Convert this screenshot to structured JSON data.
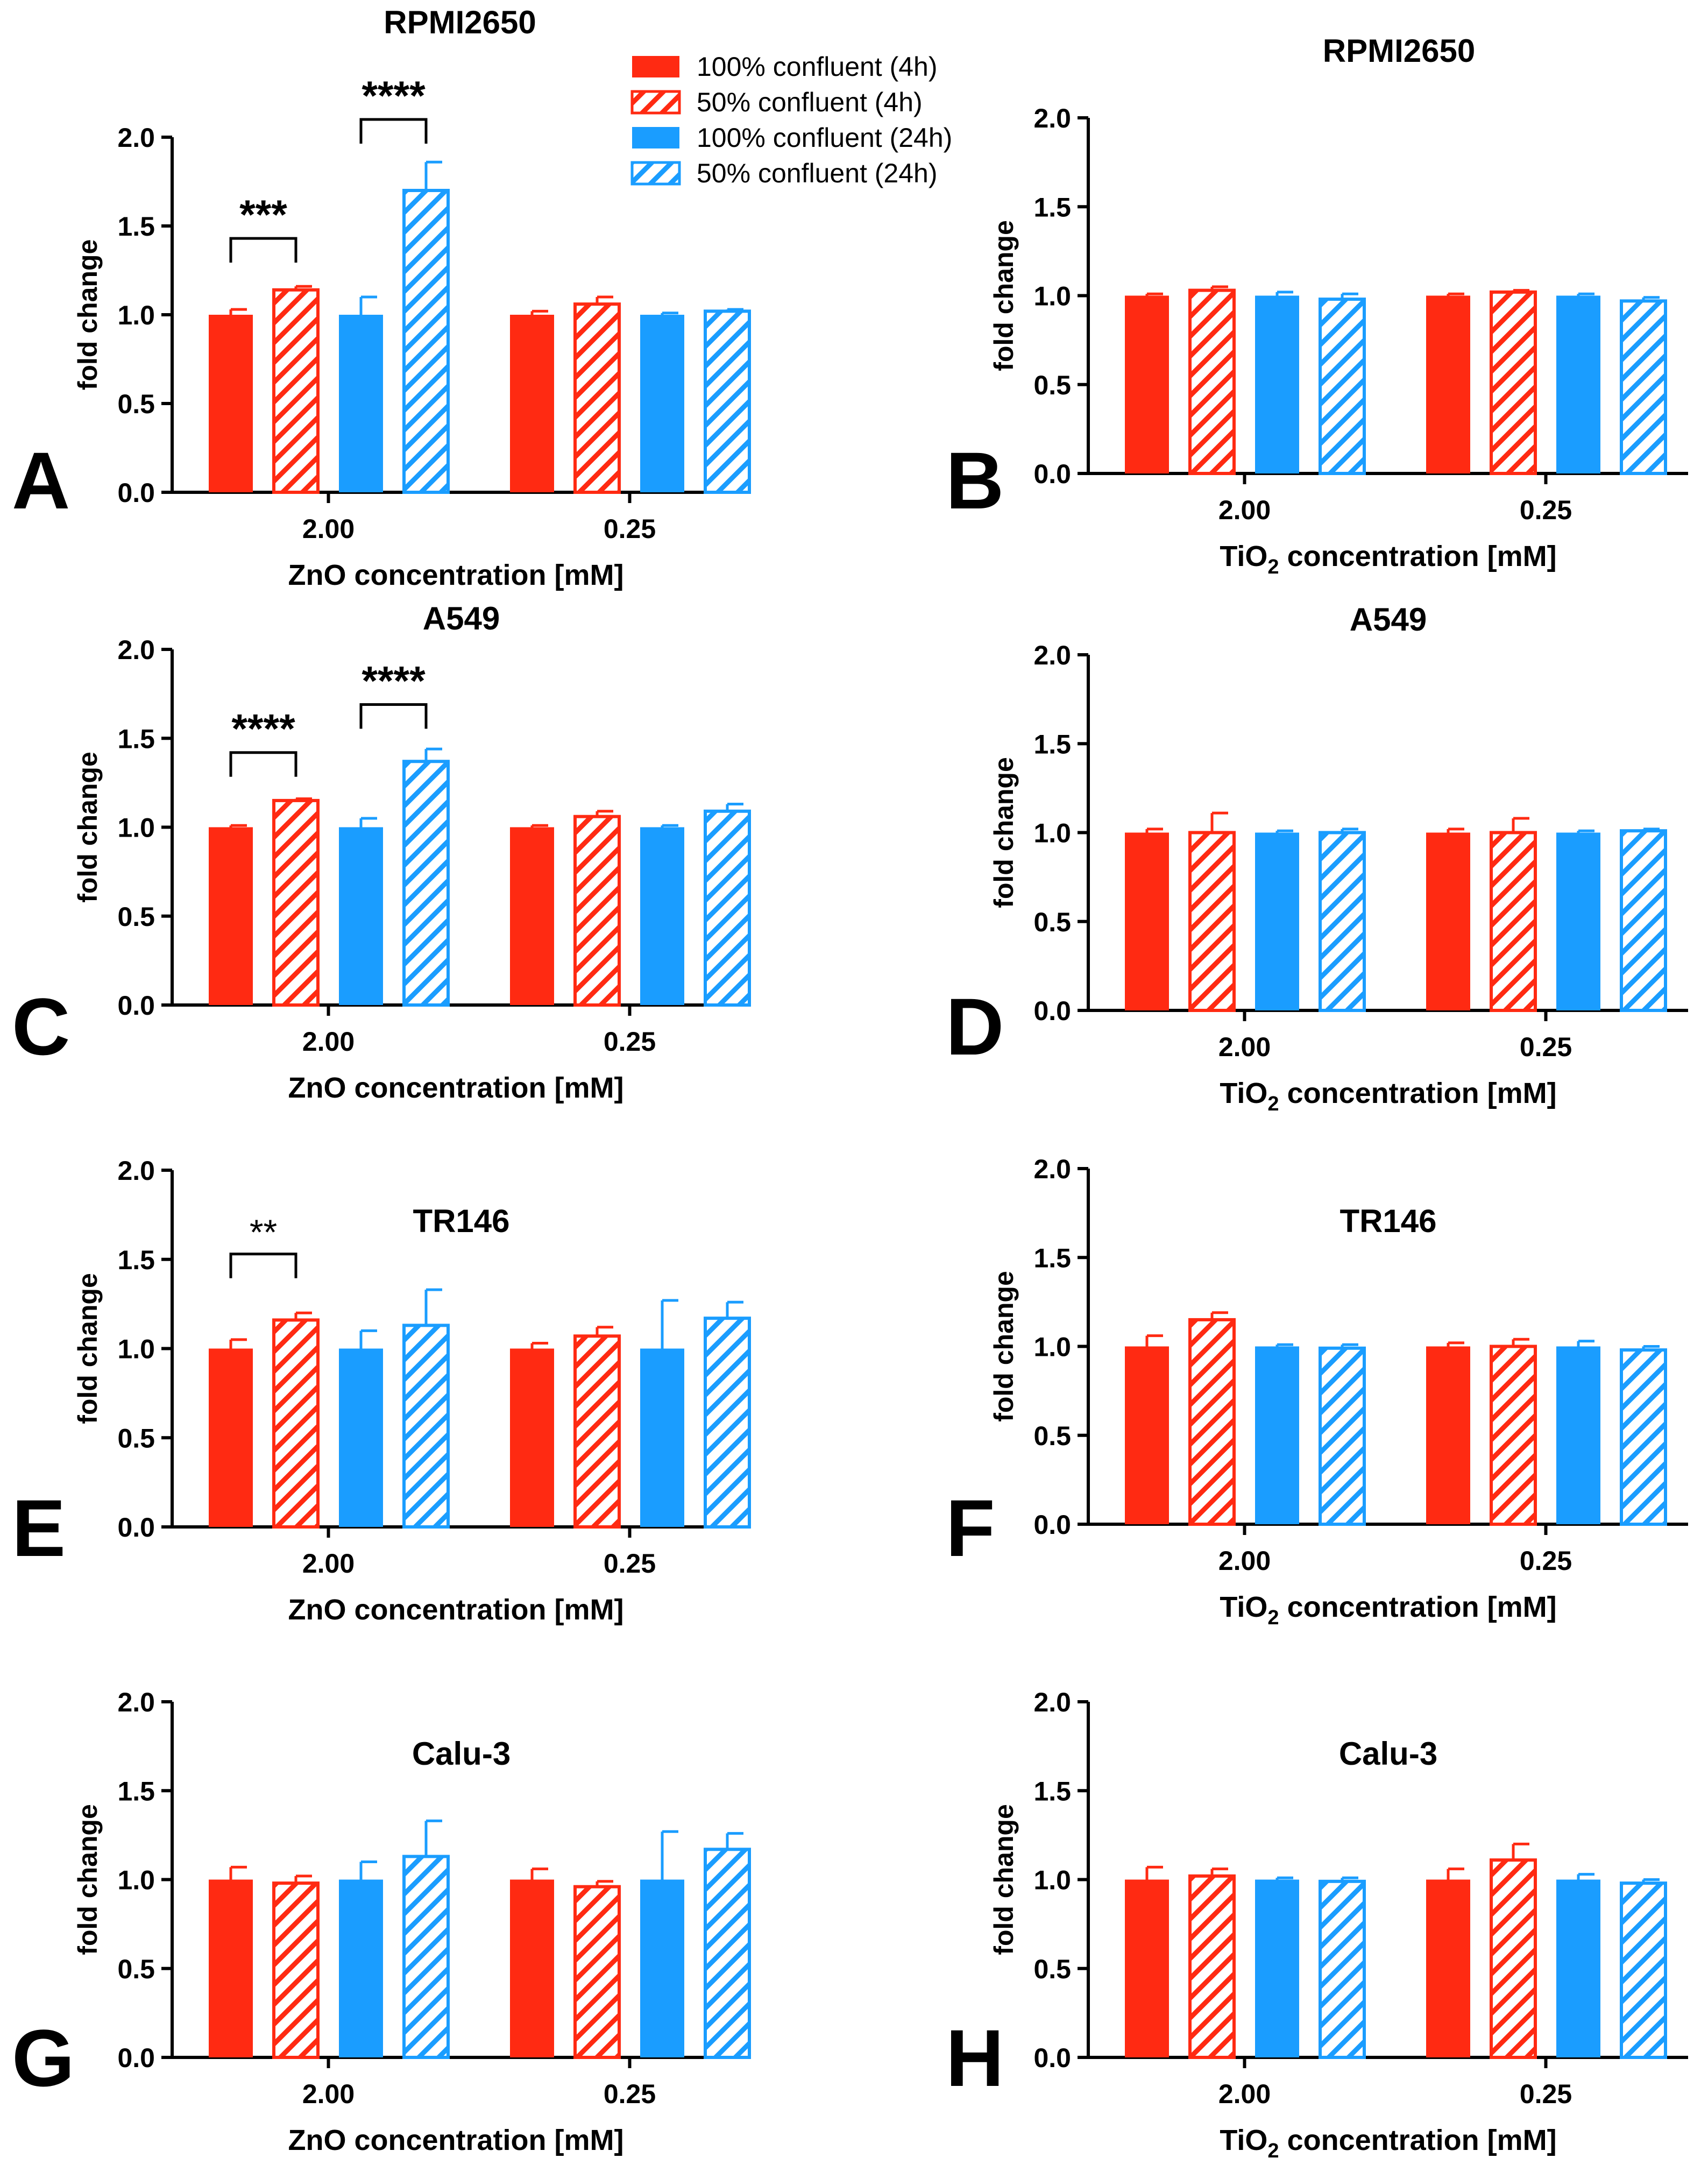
{
  "legend": {
    "entries": [
      {
        "label": "100% confluent (4h)",
        "color": "#ff2a12",
        "pattern": "solid"
      },
      {
        "label": "50% confluent (4h)",
        "color": "#ff2a12",
        "pattern": "hatched"
      },
      {
        "label": "100% confluent (24h)",
        "color": "#1a9dff",
        "pattern": "solid"
      },
      {
        "label": "50% confluent (24h)",
        "color": "#1a9dff",
        "pattern": "hatched"
      }
    ]
  },
  "chart_data": [
    {
      "panel": "A",
      "type": "bar",
      "title": "RPMI2650",
      "xlabel": "ZnO concentration [mM]",
      "ylabel": "fold change",
      "ylim": [
        0,
        2.0
      ],
      "yticks": [
        "0.0",
        "0.5",
        "1.0",
        "1.5",
        "2.0"
      ],
      "categories": [
        "2.00",
        "0.25"
      ],
      "series": [
        {
          "name": "100% confluent (4h)",
          "values": [
            1.0,
            1.0
          ],
          "errors": [
            0.03,
            0.02
          ]
        },
        {
          "name": "50% confluent (4h)",
          "values": [
            1.14,
            1.06
          ],
          "errors": [
            0.02,
            0.04
          ]
        },
        {
          "name": "100% confluent (24h)",
          "values": [
            1.0,
            1.0
          ],
          "errors": [
            0.1,
            0.01
          ]
        },
        {
          "name": "50% confluent (24h)",
          "values": [
            1.7,
            1.02
          ],
          "errors": [
            0.16,
            0.01
          ]
        }
      ],
      "significance": [
        {
          "label": "***",
          "from_series": 0,
          "to_series": 1,
          "category": 0,
          "y": 1.43
        },
        {
          "label": "****",
          "from_series": 2,
          "to_series": 3,
          "category": 0,
          "y": 2.1
        }
      ]
    },
    {
      "panel": "B",
      "type": "bar",
      "title": "RPMI2650",
      "xlabel": "TiO2 concentration [mM]",
      "ylabel": "fold change",
      "ylim": [
        0,
        2.0
      ],
      "yticks": [
        "0.0",
        "0.5",
        "1.0",
        "1.5",
        "2.0"
      ],
      "categories": [
        "2.00",
        "0.25"
      ],
      "series": [
        {
          "name": "100% confluent (4h)",
          "values": [
            1.0,
            1.0
          ],
          "errors": [
            0.01,
            0.01
          ]
        },
        {
          "name": "50% confluent (4h)",
          "values": [
            1.03,
            1.02
          ],
          "errors": [
            0.02,
            0.01
          ]
        },
        {
          "name": "100% confluent (24h)",
          "values": [
            1.0,
            1.0
          ],
          "errors": [
            0.02,
            0.01
          ]
        },
        {
          "name": "50% confluent (24h)",
          "values": [
            0.98,
            0.97
          ],
          "errors": [
            0.03,
            0.02
          ]
        }
      ],
      "significance": []
    },
    {
      "panel": "C",
      "type": "bar",
      "title": "A549",
      "xlabel": "ZnO concentration [mM]",
      "ylabel": "fold change",
      "ylim": [
        0,
        2.0
      ],
      "yticks": [
        "0.0",
        "0.5",
        "1.0",
        "1.5",
        "2.0"
      ],
      "categories": [
        "2.00",
        "0.25"
      ],
      "series": [
        {
          "name": "100% confluent (4h)",
          "values": [
            1.0,
            1.0
          ],
          "errors": [
            0.01,
            0.01
          ]
        },
        {
          "name": "50% confluent (4h)",
          "values": [
            1.15,
            1.06
          ],
          "errors": [
            0.01,
            0.03
          ]
        },
        {
          "name": "100% confluent (24h)",
          "values": [
            1.0,
            1.0
          ],
          "errors": [
            0.05,
            0.01
          ]
        },
        {
          "name": "50% confluent (24h)",
          "values": [
            1.37,
            1.09
          ],
          "errors": [
            0.07,
            0.04
          ]
        }
      ],
      "significance": [
        {
          "label": "****",
          "from_series": 0,
          "to_series": 1,
          "category": 0,
          "y": 1.42
        },
        {
          "label": "****",
          "from_series": 2,
          "to_series": 3,
          "category": 0,
          "y": 1.69
        }
      ]
    },
    {
      "panel": "D",
      "type": "bar",
      "title": "A549",
      "xlabel": "TiO2 concentration [mM]",
      "ylabel": "fold change",
      "ylim": [
        0,
        2.0
      ],
      "yticks": [
        "0.0",
        "0.5",
        "1.0",
        "1.5",
        "2.0"
      ],
      "categories": [
        "2.00",
        "0.25"
      ],
      "series": [
        {
          "name": "100% confluent (4h)",
          "values": [
            1.0,
            1.0
          ],
          "errors": [
            0.02,
            0.02
          ]
        },
        {
          "name": "50% confluent (4h)",
          "values": [
            1.0,
            1.0
          ],
          "errors": [
            0.11,
            0.08
          ]
        },
        {
          "name": "100% confluent (24h)",
          "values": [
            1.0,
            1.0
          ],
          "errors": [
            0.01,
            0.01
          ]
        },
        {
          "name": "50% confluent (24h)",
          "values": [
            1.0,
            1.01
          ],
          "errors": [
            0.02,
            0.01
          ]
        }
      ],
      "significance": []
    },
    {
      "panel": "E",
      "type": "bar",
      "title": "TR146",
      "xlabel": "ZnO concentration [mM]",
      "ylabel": "fold change",
      "ylim": [
        0,
        2.0
      ],
      "yticks": [
        "0.0",
        "0.5",
        "1.0",
        "1.5",
        "2.0"
      ],
      "categories": [
        "2.00",
        "0.25"
      ],
      "series": [
        {
          "name": "100% confluent (4h)",
          "values": [
            1.0,
            1.0
          ],
          "errors": [
            0.05,
            0.03
          ]
        },
        {
          "name": "50% confluent (4h)",
          "values": [
            1.16,
            1.07
          ],
          "errors": [
            0.04,
            0.05
          ]
        },
        {
          "name": "100% confluent (24h)",
          "values": [
            1.0,
            1.0
          ],
          "errors": [
            0.1,
            0.27
          ]
        },
        {
          "name": "50% confluent (24h)",
          "values": [
            1.13,
            1.17
          ],
          "errors": [
            0.2,
            0.09
          ]
        }
      ],
      "significance": [
        {
          "label": "**",
          "from_series": 0,
          "to_series": 1,
          "category": 0,
          "y": 1.53
        }
      ]
    },
    {
      "panel": "F",
      "type": "bar",
      "title": "TR146",
      "xlabel": "TiO2 concentration [mM]",
      "ylabel": "fold change",
      "ylim": [
        0,
        2.0
      ],
      "yticks": [
        "0.0",
        "0.5",
        "1.0",
        "1.5",
        "2.0"
      ],
      "categories": [
        "2.00",
        "0.25"
      ],
      "series": [
        {
          "name": "100% confluent (4h)",
          "values": [
            1.0,
            1.0
          ],
          "errors": [
            0.06,
            0.02
          ]
        },
        {
          "name": "50% confluent (4h)",
          "values": [
            1.15,
            1.0
          ],
          "errors": [
            0.04,
            0.04
          ]
        },
        {
          "name": "100% confluent (24h)",
          "values": [
            1.0,
            1.0
          ],
          "errors": [
            0.01,
            0.03
          ]
        },
        {
          "name": "50% confluent (24h)",
          "values": [
            0.99,
            0.98
          ],
          "errors": [
            0.02,
            0.02
          ]
        }
      ],
      "significance": []
    },
    {
      "panel": "G",
      "type": "bar",
      "title": "Calu-3",
      "xlabel": "ZnO concentration [mM]",
      "ylabel": "fold change",
      "ylim": [
        0,
        2.0
      ],
      "yticks": [
        "0.0",
        "0.5",
        "1.0",
        "1.5",
        "2.0"
      ],
      "categories": [
        "2.00",
        "0.25"
      ],
      "series": [
        {
          "name": "100% confluent (4h)",
          "values": [
            1.0,
            1.0
          ],
          "errors": [
            0.07,
            0.06
          ]
        },
        {
          "name": "50% confluent (4h)",
          "values": [
            0.98,
            0.96
          ],
          "errors": [
            0.04,
            0.03
          ]
        },
        {
          "name": "100% confluent (24h)",
          "values": [
            1.0,
            1.0
          ],
          "errors": [
            0.1,
            0.27
          ]
        },
        {
          "name": "50% confluent (24h)",
          "values": [
            1.13,
            1.17
          ],
          "errors": [
            0.2,
            0.09
          ]
        }
      ],
      "significance": []
    },
    {
      "panel": "H",
      "type": "bar",
      "title": "Calu-3",
      "xlabel": "TiO2 concentration [mM]",
      "ylabel": "fold change",
      "ylim": [
        0,
        2.0
      ],
      "yticks": [
        "0.0",
        "0.5",
        "1.0",
        "1.5",
        "2.0"
      ],
      "categories": [
        "2.00",
        "0.25"
      ],
      "series": [
        {
          "name": "100% confluent (4h)",
          "values": [
            1.0,
            1.0
          ],
          "errors": [
            0.07,
            0.06
          ]
        },
        {
          "name": "50% confluent (4h)",
          "values": [
            1.02,
            1.11
          ],
          "errors": [
            0.04,
            0.09
          ]
        },
        {
          "name": "100% confluent (24h)",
          "values": [
            1.0,
            1.0
          ],
          "errors": [
            0.01,
            0.03
          ]
        },
        {
          "name": "50% confluent (24h)",
          "values": [
            0.99,
            0.98
          ],
          "errors": [
            0.02,
            0.02
          ]
        }
      ],
      "significance": []
    }
  ]
}
